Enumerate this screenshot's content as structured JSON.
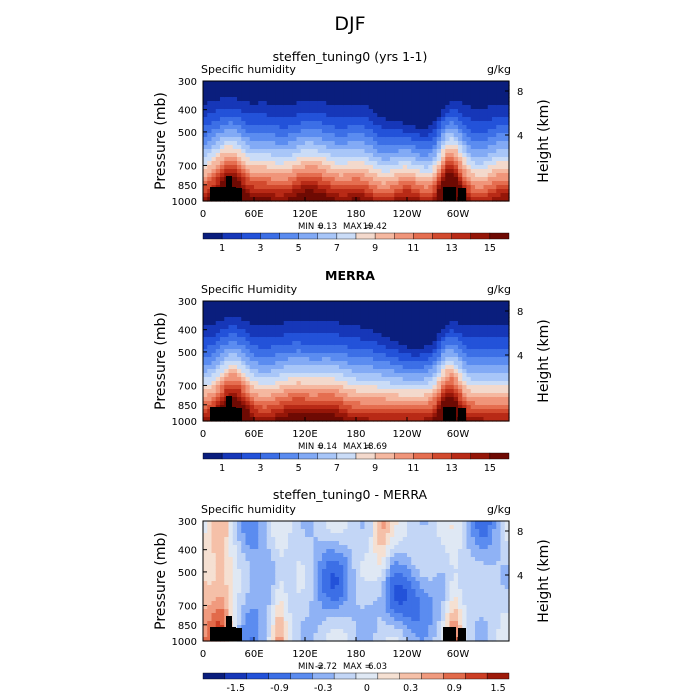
{
  "figure_title": "DJF",
  "chart_data": [
    {
      "type": "heatmap",
      "title": "steffen_tuning0 (yrs 1-1)",
      "variable_label": "Specific humidity",
      "units": "g/kg",
      "xlabel": "",
      "ylabel": "Pressure (mb)",
      "y2label": "Height (km)",
      "xticks": [
        "0",
        "60E",
        "120E",
        "180",
        "120W",
        "60W"
      ],
      "yticks": [
        "300",
        "400",
        "500",
        "700",
        "850",
        "1000"
      ],
      "y2ticks": [
        "8",
        "4"
      ],
      "ylim": [
        1000,
        300
      ],
      "min_label": "MIN =",
      "min_value": "0.13",
      "max_label": "MAX =",
      "max_value": "19.42",
      "colorbar_labels": [
        "1",
        "3",
        "5",
        "7",
        "9",
        "11",
        "13",
        "15"
      ],
      "colorbar_colors": [
        "#0a1e7d",
        "#1637b8",
        "#2352d9",
        "#3c6fe6",
        "#5b8cf0",
        "#82aaf5",
        "#a8c6f8",
        "#cadcf7",
        "#f3d9cc",
        "#f5b8a0",
        "#f0957a",
        "#e56e50",
        "#d24a2e",
        "#b82a16",
        "#951608",
        "#6e0a03"
      ],
      "profile": "model"
    },
    {
      "type": "heatmap",
      "title": "MERRA",
      "variable_label": "Specific Humidity",
      "units": "g/kg",
      "xlabel": "",
      "ylabel": "Pressure (mb)",
      "y2label": "Height (km)",
      "xticks": [
        "0",
        "60E",
        "120E",
        "180",
        "120W",
        "60W"
      ],
      "yticks": [
        "300",
        "400",
        "500",
        "700",
        "850",
        "1000"
      ],
      "y2ticks": [
        "8",
        "4"
      ],
      "ylim": [
        1000,
        300
      ],
      "min_label": "MIN =",
      "min_value": "0.14",
      "max_label": "MAX =",
      "max_value": "18.69",
      "colorbar_labels": [
        "1",
        "3",
        "5",
        "7",
        "9",
        "11",
        "13",
        "15"
      ],
      "colorbar_colors": [
        "#0a1e7d",
        "#1637b8",
        "#2352d9",
        "#3c6fe6",
        "#5b8cf0",
        "#82aaf5",
        "#a8c6f8",
        "#cadcf7",
        "#f3d9cc",
        "#f5b8a0",
        "#f0957a",
        "#e56e50",
        "#d24a2e",
        "#b82a16",
        "#951608",
        "#6e0a03"
      ],
      "profile": "obs"
    },
    {
      "type": "heatmap",
      "title": "steffen_tuning0 - MERRA",
      "variable_label": "Specific humidity",
      "units": "g/kg",
      "xlabel": "",
      "ylabel": "Pressure (mb)",
      "y2label": "Height (km)",
      "xticks": [
        "0",
        "60E",
        "120E",
        "180",
        "120W",
        "60W"
      ],
      "yticks": [
        "300",
        "400",
        "500",
        "700",
        "850",
        "1000"
      ],
      "y2ticks": [
        "8",
        "4"
      ],
      "ylim": [
        1000,
        300
      ],
      "min_label": "MIN =",
      "min_value": "-2.72",
      "max_label": "MAX =",
      "max_value": "6.03",
      "colorbar_labels": [
        "-1.5",
        "-0.9",
        "-0.3",
        "0",
        "0.3",
        "0.9",
        "1.5"
      ],
      "colorbar_colors": [
        "#0a1e7d",
        "#1637b8",
        "#2352d9",
        "#3c6fe6",
        "#5b8cf0",
        "#8fb2f5",
        "#c3d6f6",
        "#dfe8f4",
        "#f5e0d2",
        "#f5c0a8",
        "#f09a7e",
        "#e26a4a",
        "#cc3e24",
        "#9e1a0a"
      ],
      "profile": "diff"
    }
  ]
}
